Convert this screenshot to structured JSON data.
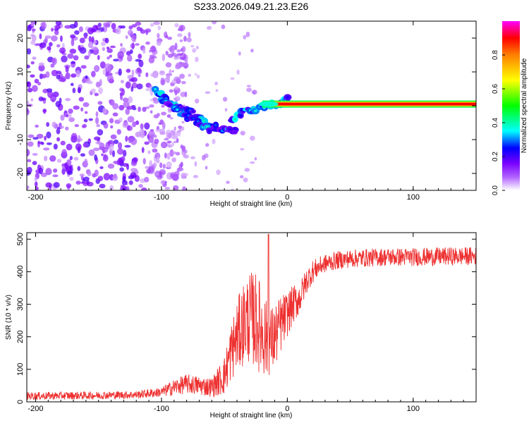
{
  "title": "S233.2026.049.21.23.E26",
  "chart_data": [
    {
      "type": "heatmap",
      "xlabel": "Height of straight line (km)",
      "ylabel": "Frequency (Hz)",
      "xlim": [
        -207,
        150
      ],
      "ylim": [
        -25,
        25
      ],
      "xticks": [
        -200,
        -100,
        0,
        100
      ],
      "yticks": [
        -20,
        -10,
        0,
        10,
        20
      ],
      "colorbar": {
        "label": "Normalized spectral amplitude",
        "range": [
          0,
          1
        ],
        "ticks": [
          "0.0",
          "0.2",
          "0.4",
          "0.6",
          "0.8"
        ],
        "colors": [
          "#ffffff",
          "#7a00ff",
          "#0000ff",
          "#00ffff",
          "#00ff00",
          "#ffff00",
          "#ff8000",
          "#ff0000",
          "#ff00ff"
        ]
      },
      "features": [
        {
          "name": "noise",
          "x_range": [
            -207,
            -95
          ],
          "freq_range": [
            -25,
            25
          ],
          "amplitude": 0.1
        },
        {
          "name": "descending-trace-upper",
          "points": [
            [
              -105,
              5
            ],
            [
              -90,
              0
            ],
            [
              -75,
              -2
            ],
            [
              -60,
              -6
            ],
            [
              -50,
              -7
            ],
            [
              -40,
              -8
            ]
          ],
          "amplitude": 0.3
        },
        {
          "name": "descending-trace-lower",
          "points": [
            [
              -100,
              2
            ],
            [
              -85,
              -2
            ],
            [
              -70,
              -5
            ],
            [
              -60,
              -8
            ]
          ],
          "amplitude": 0.3
        },
        {
          "name": "rising-trace",
          "points": [
            [
              -45,
              -4
            ],
            [
              -35,
              -2
            ],
            [
              -25,
              -1
            ],
            [
              -15,
              0
            ],
            [
              -5,
              1
            ],
            [
              0,
              2
            ]
          ],
          "amplitude": 0.35
        },
        {
          "name": "signal-line",
          "x_range": [
            -20,
            150
          ],
          "frequency": 0.5,
          "amplitude": 0.95
        }
      ]
    },
    {
      "type": "line",
      "xlabel": "Height of straight line (km)",
      "ylabel": "SNR (10 * v/v)",
      "xlim": [
        -207,
        150
      ],
      "ylim": [
        0,
        520
      ],
      "xticks": [
        -200,
        -100,
        0,
        100
      ],
      "yticks": [
        0,
        100,
        200,
        300,
        400,
        500
      ],
      "color": "#ee3030",
      "series": [
        {
          "name": "SNR",
          "x": [
            -207,
            -150,
            -120,
            -100,
            -90,
            -80,
            -70,
            -60,
            -50,
            -45,
            -40,
            -35,
            -30,
            -25,
            -20,
            -15,
            -10,
            -5,
            0,
            5,
            10,
            15,
            20,
            25,
            30,
            40,
            50,
            75,
            100,
            125,
            150
          ],
          "mean": [
            18,
            20,
            22,
            30,
            45,
            55,
            50,
            45,
            80,
            150,
            200,
            240,
            260,
            250,
            220,
            180,
            200,
            240,
            270,
            300,
            320,
            370,
            400,
            415,
            425,
            435,
            440,
            445,
            445,
            447,
            448
          ],
          "spread": [
            12,
            12,
            12,
            15,
            25,
            30,
            30,
            30,
            60,
            90,
            110,
            130,
            140,
            150,
            140,
            110,
            100,
            90,
            70,
            60,
            50,
            40,
            35,
            30,
            28,
            28,
            28,
            28,
            28,
            28,
            28
          ]
        }
      ]
    }
  ]
}
